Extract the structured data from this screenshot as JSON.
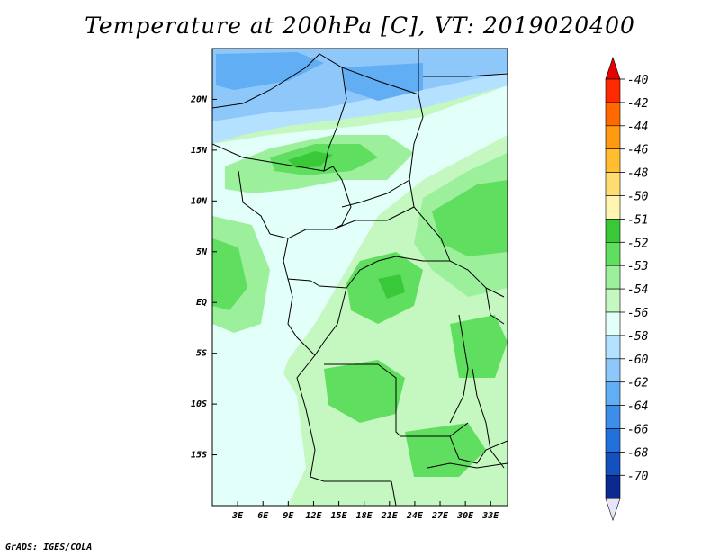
{
  "title": "Temperature at 200hPa [C], VT: 2019020400",
  "credit": "GrADS: IGES/COLA",
  "map": {
    "lon_range": [
      0,
      35
    ],
    "lat_range": [
      -20,
      25
    ],
    "lat_ticks": [
      {
        "value": 20,
        "label": "20N"
      },
      {
        "value": 15,
        "label": "15N"
      },
      {
        "value": 10,
        "label": "10N"
      },
      {
        "value": 5,
        "label": "5N"
      },
      {
        "value": 0,
        "label": "EQ"
      },
      {
        "value": -5,
        "label": "5S"
      },
      {
        "value": -10,
        "label": "10S"
      },
      {
        "value": -15,
        "label": "15S"
      }
    ],
    "lon_ticks": [
      {
        "value": 3,
        "label": "3E"
      },
      {
        "value": 6,
        "label": "6E"
      },
      {
        "value": 9,
        "label": "9E"
      },
      {
        "value": 12,
        "label": "12E"
      },
      {
        "value": 15,
        "label": "15E"
      },
      {
        "value": 18,
        "label": "18E"
      },
      {
        "value": 21,
        "label": "21E"
      },
      {
        "value": 24,
        "label": "24E"
      },
      {
        "value": 27,
        "label": "27E"
      },
      {
        "value": 30,
        "label": "30E"
      },
      {
        "value": 33,
        "label": "33E"
      }
    ]
  },
  "colorbar": {
    "levels": [
      {
        "label": "-40",
        "color": "#ff2a00"
      },
      {
        "label": "-42",
        "color": "#ff6a00"
      },
      {
        "label": "-44",
        "color": "#ff9a10"
      },
      {
        "label": "-46",
        "color": "#ffbe30"
      },
      {
        "label": "-48",
        "color": "#ffdc70"
      },
      {
        "label": "-50",
        "color": "#fff5b0"
      },
      {
        "label": "-51",
        "color": "#38c838"
      },
      {
        "label": "-52",
        "color": "#5fde5f"
      },
      {
        "label": "-53",
        "color": "#9cf09c"
      },
      {
        "label": "-54",
        "color": "#c5f7c0"
      },
      {
        "label": "-56",
        "color": "#e3fff9"
      },
      {
        "label": "-58",
        "color": "#b4e1ff"
      },
      {
        "label": "-60",
        "color": "#8ec8fa"
      },
      {
        "label": "-62",
        "color": "#62aef5"
      },
      {
        "label": "-64",
        "color": "#3c8ee8"
      },
      {
        "label": "-66",
        "color": "#2270dc"
      },
      {
        "label": "-68",
        "color": "#1450c0"
      },
      {
        "label": "-70",
        "color": "#0a2a90"
      }
    ],
    "top_color": "#e60000",
    "below_color": "#000064",
    "bottom_color": "#e6e6fa"
  }
}
